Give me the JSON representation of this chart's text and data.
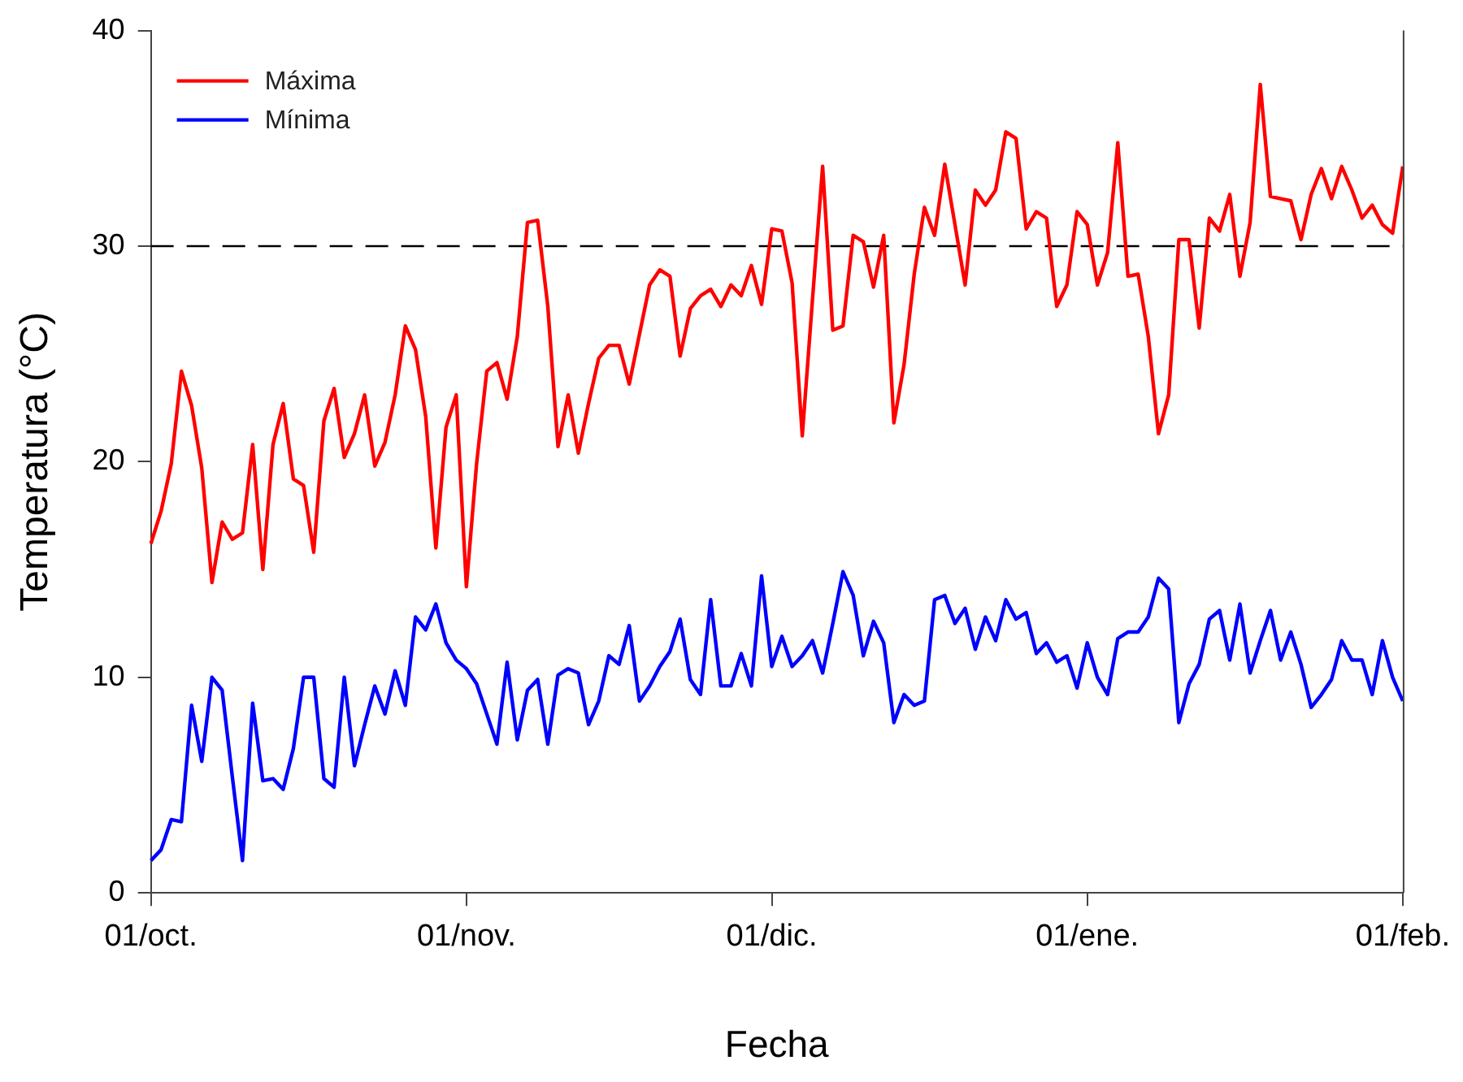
{
  "chart_data": {
    "type": "line",
    "xlabel": "Fecha",
    "ylabel": "Temperatura (°C)",
    "categories": [
      "01/oct.",
      null,
      null,
      null,
      null,
      null,
      null,
      null,
      null,
      null,
      null,
      null,
      null,
      null,
      null,
      null,
      null,
      null,
      null,
      null,
      null,
      null,
      null,
      null,
      null,
      null,
      null,
      null,
      null,
      null,
      null,
      "01/nov.",
      null,
      null,
      null,
      null,
      null,
      null,
      null,
      null,
      null,
      null,
      null,
      null,
      null,
      null,
      null,
      null,
      null,
      null,
      null,
      null,
      null,
      null,
      null,
      null,
      null,
      null,
      null,
      null,
      null,
      "01/dic.",
      null,
      null,
      null,
      null,
      null,
      null,
      null,
      null,
      null,
      null,
      null,
      null,
      null,
      null,
      null,
      null,
      null,
      null,
      null,
      null,
      null,
      null,
      null,
      null,
      null,
      null,
      null,
      null,
      null,
      null,
      "01/ene.",
      null,
      null,
      null,
      null,
      null,
      null,
      null,
      null,
      null,
      null,
      null,
      null,
      null,
      null,
      null,
      null,
      null,
      null,
      null,
      null,
      null,
      null,
      null,
      null,
      null,
      null,
      null,
      null,
      null,
      null,
      "01/feb."
    ],
    "series": [
      {
        "name": "Máxima",
        "color": "#ff0000",
        "values": [
          16.2,
          17.7,
          19.9,
          24.2,
          22.6,
          19.7,
          14.4,
          17.2,
          16.4,
          16.7,
          20.8,
          15.0,
          20.8,
          22.7,
          19.2,
          18.9,
          15.8,
          21.9,
          23.4,
          20.2,
          21.3,
          23.1,
          19.8,
          20.9,
          23.1,
          26.3,
          25.2,
          22.1,
          16.0,
          21.6,
          23.1,
          14.2,
          19.9,
          24.2,
          24.6,
          22.9,
          25.8,
          31.1,
          31.2,
          27.2,
          20.7,
          23.1,
          20.4,
          22.7,
          24.8,
          25.4,
          25.4,
          23.6,
          25.9,
          28.2,
          28.9,
          28.6,
          24.9,
          27.1,
          27.7,
          28.0,
          27.2,
          28.2,
          27.7,
          29.1,
          27.3,
          30.8,
          30.7,
          28.3,
          21.2,
          27.5,
          33.7,
          26.1,
          26.3,
          30.5,
          30.2,
          28.1,
          30.5,
          21.8,
          24.5,
          28.7,
          31.8,
          30.5,
          33.8,
          31.0,
          28.2,
          32.6,
          31.9,
          32.6,
          35.3,
          35.0,
          30.8,
          31.6,
          31.3,
          27.2,
          28.2,
          31.6,
          31.0,
          28.2,
          29.7,
          34.8,
          28.6,
          28.7,
          25.8,
          21.3,
          23.1,
          30.3,
          30.3,
          26.2,
          31.3,
          30.7,
          32.4,
          28.6,
          31.1,
          37.5,
          32.3,
          32.2,
          32.1,
          30.3,
          32.4,
          33.6,
          32.2,
          33.7,
          32.6,
          31.3,
          31.9,
          31.0,
          30.6,
          33.7
        ]
      },
      {
        "name": "Mínima",
        "color": "#0000ff",
        "values": [
          1.5,
          2.0,
          3.4,
          3.3,
          8.7,
          6.1,
          10.0,
          9.4,
          5.4,
          1.5,
          8.8,
          5.2,
          5.3,
          4.8,
          6.7,
          10.0,
          10.0,
          5.3,
          4.9,
          10.0,
          5.9,
          7.8,
          9.6,
          8.3,
          10.3,
          8.7,
          12.8,
          12.2,
          13.4,
          11.6,
          10.8,
          10.4,
          9.7,
          8.3,
          6.9,
          10.7,
          7.1,
          9.4,
          9.9,
          6.9,
          10.1,
          10.4,
          10.2,
          7.8,
          8.9,
          11.0,
          10.6,
          12.4,
          8.9,
          9.6,
          10.5,
          11.2,
          12.7,
          9.9,
          9.2,
          13.6,
          9.6,
          9.6,
          11.1,
          9.6,
          14.7,
          10.5,
          11.9,
          10.5,
          11.0,
          11.7,
          10.2,
          12.5,
          14.9,
          13.8,
          11.0,
          12.6,
          11.6,
          7.9,
          9.2,
          8.7,
          8.9,
          13.6,
          13.8,
          12.5,
          13.2,
          11.3,
          12.8,
          11.7,
          13.6,
          12.7,
          13.0,
          11.1,
          11.6,
          10.7,
          11.0,
          9.5,
          11.6,
          10.0,
          9.2,
          11.8,
          12.1,
          12.1,
          12.8,
          14.6,
          14.1,
          7.9,
          9.7,
          10.6,
          12.7,
          13.1,
          10.8,
          13.4,
          10.2,
          11.7,
          13.1,
          10.8,
          12.1,
          10.6,
          8.6,
          9.2,
          9.9,
          11.7,
          10.8,
          10.8,
          9.2,
          11.7,
          10.0,
          8.9
        ]
      }
    ],
    "ylim": [
      0,
      40
    ],
    "yticks": [
      0,
      10,
      20,
      30,
      40
    ],
    "ref_lines": [
      {
        "axis": "y",
        "value": 30,
        "color": "#000000",
        "line_style": "dashed"
      }
    ],
    "legend": "top left",
    "grid": false,
    "marker": "none",
    "line_style": "solid"
  }
}
